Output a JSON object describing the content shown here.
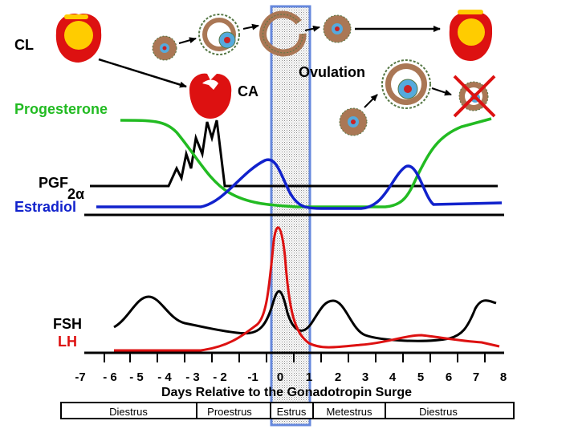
{
  "labels": {
    "cl": "CL",
    "ca": "CA",
    "ovulation": "Ovulation",
    "progesterone": "Progesterone",
    "pgf_main": "PGF",
    "pgf_sub": "2α",
    "estradiol": "Estradiol",
    "fsh": "FSH",
    "lh": "LH"
  },
  "axis": {
    "title": "Days Relative to the Gonadotropin Surge",
    "ticks": [
      "-7",
      "- 6",
      "- 5",
      "- 4",
      "- 3",
      "- 2",
      "-1",
      "0",
      "1",
      "2",
      "3",
      "4",
      "5",
      "6",
      "7",
      "8"
    ]
  },
  "phases": [
    {
      "label": "Diestrus"
    },
    {
      "label": "Proestrus"
    },
    {
      "label": "Estrus"
    },
    {
      "label": "Metestrus"
    },
    {
      "label": "Diestrus"
    }
  ],
  "colors": {
    "progesterone": "#22bb22",
    "estradiol": "#1122cc",
    "pgf": "#000000",
    "fsh": "#000000",
    "lh": "#dd1111",
    "cl_red": "#dd1111",
    "cl_yellow": "#ffcc00",
    "follicle_brown": "#aa7755",
    "follicle_blue": "#55aadd",
    "highlight": "#6688dd"
  },
  "icons": [
    "corpus-luteum-icon",
    "corpus-albicans-icon",
    "follicle-icon",
    "ruptured-follicle-icon",
    "atretic-follicle-x-icon"
  ]
}
